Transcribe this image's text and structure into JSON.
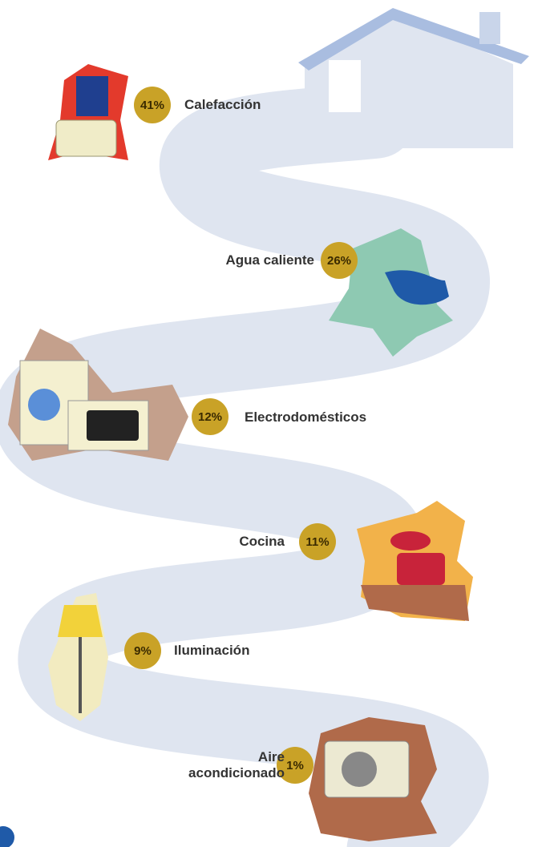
{
  "items": [
    {
      "label": "Calefacción",
      "percent": "41%"
    },
    {
      "label": "Agua caliente",
      "percent": "26%"
    },
    {
      "label": "Electrodomésticos",
      "percent": "12%"
    },
    {
      "label": "Cocina",
      "percent": "11%"
    },
    {
      "label": "Iluminación",
      "percent": "9%"
    },
    {
      "label": "Aire acondicionado",
      "percent": "1%"
    }
  ]
}
